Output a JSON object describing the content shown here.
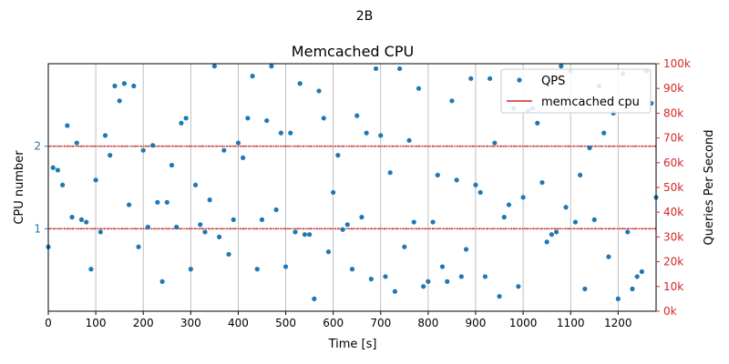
{
  "chart_data": {
    "type": "scatter",
    "suptitle": "2B",
    "title": "Memcached CPU",
    "xlabel": "Time [s]",
    "ylabel_left": "CPU number",
    "ylabel_right": "Queries Per Second",
    "xlim": [
      0,
      1280
    ],
    "x_ticks": [
      0,
      100,
      200,
      300,
      400,
      500,
      600,
      700,
      800,
      900,
      1000,
      1100,
      1200
    ],
    "y_left_lim": [
      0,
      3
    ],
    "y_left_ticks": [
      1,
      2
    ],
    "y_right_lim": [
      0,
      100000
    ],
    "y_right_ticks": [
      0,
      10000,
      20000,
      30000,
      40000,
      50000,
      60000,
      70000,
      80000,
      90000,
      100000
    ],
    "y_right_tick_labels": [
      "0k",
      "10k",
      "20k",
      "30k",
      "40k",
      "50k",
      "60k",
      "70k",
      "80k",
      "90k",
      "100k"
    ],
    "grid": "x-major vertical lines and y-left horizontal lines",
    "legend": {
      "position": "top-right",
      "entries": [
        "QPS",
        "memcached cpu"
      ]
    },
    "colors": {
      "qps": "#1f77b4",
      "cpu": "#d62728",
      "left_axis": "#1f77b4",
      "right_axis": "#d62728"
    },
    "series": [
      {
        "name": "QPS",
        "axis": "right",
        "style": "points",
        "points": [
          [
            0,
            26000
          ],
          [
            10,
            58000
          ],
          [
            20,
            57000
          ],
          [
            30,
            51000
          ],
          [
            40,
            75000
          ],
          [
            50,
            38000
          ],
          [
            60,
            68000
          ],
          [
            70,
            37000
          ],
          [
            80,
            36000
          ],
          [
            90,
            17000
          ],
          [
            100,
            53000
          ],
          [
            110,
            32000
          ],
          [
            120,
            71000
          ],
          [
            130,
            63000
          ],
          [
            140,
            91000
          ],
          [
            150,
            85000
          ],
          [
            160,
            92000
          ],
          [
            170,
            43000
          ],
          [
            180,
            91000
          ],
          [
            190,
            26000
          ],
          [
            200,
            65000
          ],
          [
            210,
            34000
          ],
          [
            220,
            67000
          ],
          [
            230,
            44000
          ],
          [
            240,
            12000
          ],
          [
            250,
            44000
          ],
          [
            260,
            59000
          ],
          [
            270,
            34000
          ],
          [
            280,
            76000
          ],
          [
            290,
            78000
          ],
          [
            300,
            17000
          ],
          [
            310,
            51000
          ],
          [
            320,
            35000
          ],
          [
            330,
            32000
          ],
          [
            340,
            45000
          ],
          [
            350,
            99000
          ],
          [
            360,
            30000
          ],
          [
            370,
            65000
          ],
          [
            380,
            23000
          ],
          [
            390,
            37000
          ],
          [
            400,
            68000
          ],
          [
            410,
            62000
          ],
          [
            420,
            78000
          ],
          [
            430,
            95000
          ],
          [
            440,
            17000
          ],
          [
            450,
            37000
          ],
          [
            460,
            77000
          ],
          [
            470,
            99000
          ],
          [
            480,
            41000
          ],
          [
            490,
            72000
          ],
          [
            500,
            18000
          ],
          [
            510,
            72000
          ],
          [
            520,
            32000
          ],
          [
            530,
            92000
          ],
          [
            540,
            31000
          ],
          [
            550,
            31000
          ],
          [
            560,
            5000
          ],
          [
            570,
            89000
          ],
          [
            580,
            78000
          ],
          [
            590,
            24000
          ],
          [
            600,
            48000
          ],
          [
            610,
            63000
          ],
          [
            620,
            33000
          ],
          [
            630,
            35000
          ],
          [
            640,
            17000
          ],
          [
            650,
            79000
          ],
          [
            660,
            38000
          ],
          [
            670,
            72000
          ],
          [
            680,
            13000
          ],
          [
            690,
            98000
          ],
          [
            700,
            71000
          ],
          [
            710,
            14000
          ],
          [
            720,
            56000
          ],
          [
            730,
            8000
          ],
          [
            740,
            98000
          ],
          [
            750,
            26000
          ],
          [
            760,
            69000
          ],
          [
            770,
            36000
          ],
          [
            780,
            90000
          ],
          [
            790,
            10000
          ],
          [
            800,
            12000
          ],
          [
            810,
            36000
          ],
          [
            820,
            55000
          ],
          [
            830,
            18000
          ],
          [
            840,
            12000
          ],
          [
            850,
            85000
          ],
          [
            860,
            53000
          ],
          [
            870,
            14000
          ],
          [
            880,
            25000
          ],
          [
            890,
            94000
          ],
          [
            900,
            51000
          ],
          [
            910,
            48000
          ],
          [
            920,
            14000
          ],
          [
            930,
            94000
          ],
          [
            940,
            68000
          ],
          [
            950,
            6000
          ],
          [
            960,
            38000
          ],
          [
            970,
            43000
          ],
          [
            980,
            82000
          ],
          [
            990,
            10000
          ],
          [
            1000,
            46000
          ],
          [
            1010,
            81000
          ],
          [
            1020,
            82000
          ],
          [
            1030,
            76000
          ],
          [
            1040,
            52000
          ],
          [
            1050,
            28000
          ],
          [
            1060,
            31000
          ],
          [
            1070,
            32000
          ],
          [
            1080,
            99000
          ],
          [
            1090,
            42000
          ],
          [
            1100,
            97000
          ],
          [
            1110,
            36000
          ],
          [
            1120,
            55000
          ],
          [
            1130,
            9000
          ],
          [
            1140,
            66000
          ],
          [
            1150,
            37000
          ],
          [
            1160,
            91000
          ],
          [
            1170,
            72000
          ],
          [
            1180,
            22000
          ],
          [
            1190,
            80000
          ],
          [
            1200,
            5000
          ],
          [
            1210,
            96000
          ],
          [
            1220,
            32000
          ],
          [
            1230,
            9000
          ],
          [
            1240,
            14000
          ],
          [
            1250,
            16000
          ],
          [
            1260,
            97000
          ],
          [
            1270,
            84000
          ],
          [
            1280,
            46000
          ]
        ]
      },
      {
        "name": "memcached cpu",
        "axis": "left",
        "style": "dense red dashes at the two CPU levels",
        "levels": [
          1,
          2
        ],
        "x_range": [
          0,
          1280
        ]
      }
    ]
  }
}
